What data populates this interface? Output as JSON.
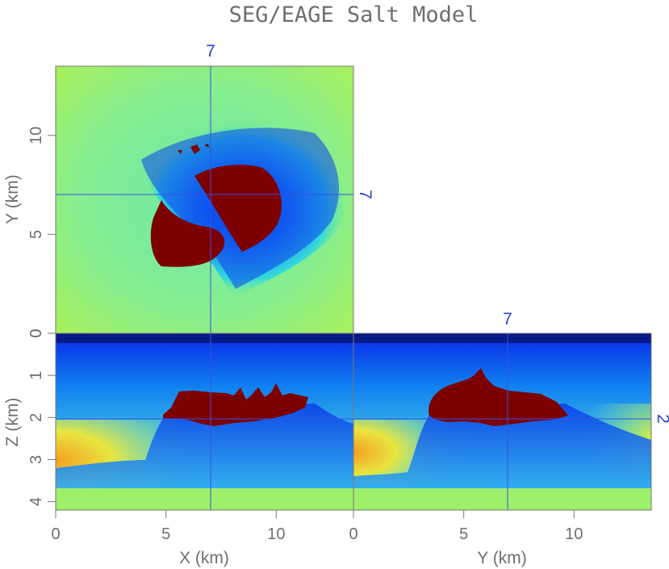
{
  "chart_data": {
    "type": "heatmap",
    "title": "SEG/EAGE Salt Model",
    "colors": {
      "background": "#9ef06a",
      "salt": "#7d0000",
      "crosshair": "#3a4fe0",
      "annotation": "#2a3fd6",
      "axis_text": "#6e6e6e",
      "frame": "#777777"
    },
    "panels": [
      {
        "name": "depth-slice",
        "xlabel": "",
        "ylabel": "Y (km)",
        "xlim": [
          0,
          13.5
        ],
        "ylim": [
          0,
          13.5
        ],
        "xticks": [],
        "yticks": [
          "0",
          "5",
          "10"
        ],
        "crosshair": {
          "x": 7,
          "y": 7
        },
        "annotations": [
          "7",
          "7"
        ]
      },
      {
        "name": "inline-section",
        "xlabel": "X (km)",
        "ylabel": "Z (km)",
        "xlim": [
          0,
          13.5
        ],
        "ylim": [
          0,
          4.2
        ],
        "xticks": [
          "0",
          "5",
          "10"
        ],
        "yticks": [
          "0",
          "1",
          "2",
          "3",
          "4"
        ],
        "crosshair": {
          "x": 7,
          "z": 2
        }
      },
      {
        "name": "crossline-section",
        "xlabel": "Y (km)",
        "ylabel": "",
        "xlim": [
          0,
          13.5
        ],
        "ylim": [
          0,
          4.2
        ],
        "xticks": [
          "0",
          "5",
          "10"
        ],
        "yticks": [],
        "crosshair": {
          "y": 7,
          "z": 2
        },
        "annotations": [
          "7",
          "2"
        ]
      }
    ]
  }
}
